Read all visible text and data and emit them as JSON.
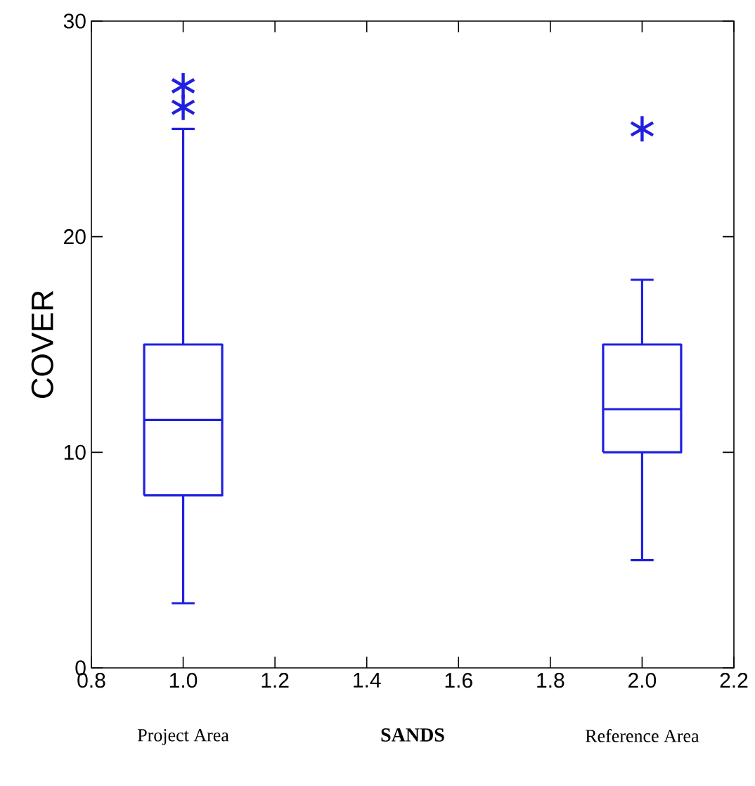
{
  "chart_data": {
    "type": "box",
    "xlabel": "SANDS",
    "ylabel": "COVER",
    "x": [
      1.0,
      2.0
    ],
    "color": "#2020e0",
    "marker": "star",
    "boxes": [
      {
        "low": 3,
        "q1": 8,
        "median": 11.5,
        "q3": 15,
        "high": 25,
        "outliers": [
          26,
          27
        ]
      },
      {
        "low": 5,
        "q1": 10,
        "median": 12,
        "q3": 15,
        "high": 18,
        "outliers": [
          25
        ]
      }
    ],
    "xlim": [
      0.8,
      2.2
    ],
    "ylim": [
      0,
      30
    ],
    "xticks": [
      {
        "value": 0.8,
        "label": "0.8"
      },
      {
        "value": 1,
        "label": "1.0"
      },
      {
        "value": 1.2,
        "label": "1.2"
      },
      {
        "value": 1.4,
        "label": "1.4"
      },
      {
        "value": 1.6,
        "label": "1.6"
      },
      {
        "value": 1.8,
        "label": "1.8"
      },
      {
        "value": 2,
        "label": "2.0"
      },
      {
        "value": 2.2,
        "label": "2.2"
      }
    ],
    "yticks": [
      0,
      10,
      20,
      30
    ],
    "annotations": [
      "Project Area",
      "Reference Area"
    ]
  }
}
